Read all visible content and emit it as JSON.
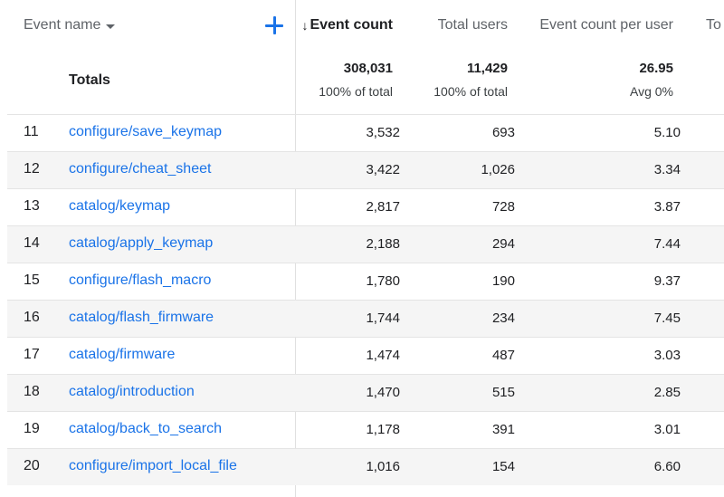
{
  "header": {
    "event_name": "Event name",
    "event_count": "Event count",
    "total_users": "Total users",
    "event_count_per_user": "Event count per user",
    "truncated": "To"
  },
  "totals": {
    "label": "Totals",
    "event_count": "308,031",
    "event_count_sub": "100% of total",
    "total_users": "11,429",
    "total_users_sub": "100% of total",
    "per_user": "26.95",
    "per_user_sub": "Avg 0%"
  },
  "rows": [
    {
      "idx": "11",
      "name": "configure/save_keymap",
      "count": "3,532",
      "users": "693",
      "per_user": "5.10"
    },
    {
      "idx": "12",
      "name": "configure/cheat_sheet",
      "count": "3,422",
      "users": "1,026",
      "per_user": "3.34"
    },
    {
      "idx": "13",
      "name": "catalog/keymap",
      "count": "2,817",
      "users": "728",
      "per_user": "3.87"
    },
    {
      "idx": "14",
      "name": "catalog/apply_keymap",
      "count": "2,188",
      "users": "294",
      "per_user": "7.44"
    },
    {
      "idx": "15",
      "name": "configure/flash_macro",
      "count": "1,780",
      "users": "190",
      "per_user": "9.37"
    },
    {
      "idx": "16",
      "name": "catalog/flash_firmware",
      "count": "1,744",
      "users": "234",
      "per_user": "7.45"
    },
    {
      "idx": "17",
      "name": "catalog/firmware",
      "count": "1,474",
      "users": "487",
      "per_user": "3.03"
    },
    {
      "idx": "18",
      "name": "catalog/introduction",
      "count": "1,470",
      "users": "515",
      "per_user": "2.85"
    },
    {
      "idx": "19",
      "name": "catalog/back_to_search",
      "count": "1,178",
      "users": "391",
      "per_user": "3.01"
    },
    {
      "idx": "20",
      "name": "configure/import_local_file",
      "count": "1,016",
      "users": "154",
      "per_user": "6.60"
    }
  ],
  "colors": {
    "link": "#1a73e8",
    "accent": "#1a73e8"
  }
}
